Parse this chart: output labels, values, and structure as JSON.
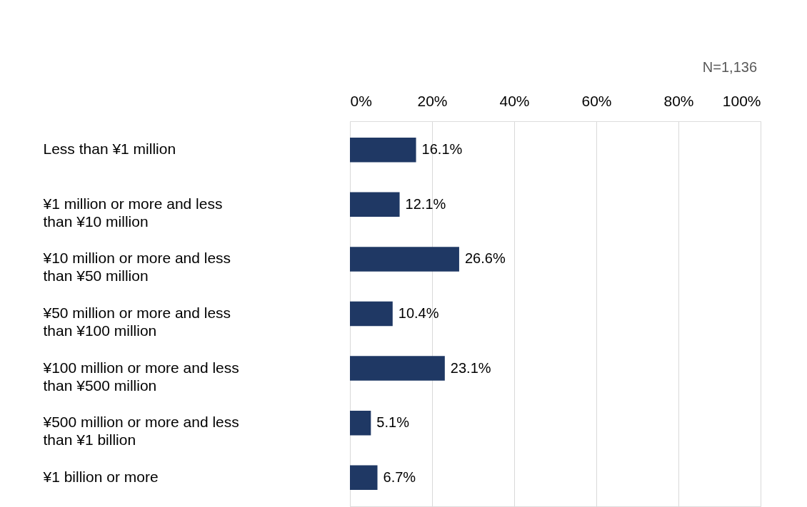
{
  "chart_data": {
    "type": "bar",
    "orientation": "horizontal",
    "categories": [
      "Less than ¥1 million",
      "¥1 million or more and less than ¥10 million",
      "¥10 million or more and less than ¥50 million",
      "¥50 million or more and less than ¥100 million",
      "¥100 million or more and less than ¥500 million",
      "¥500 million or more and less than ¥1 billion",
      "¥1 billion or more"
    ],
    "values": [
      16.1,
      12.1,
      26.6,
      10.4,
      23.1,
      5.1,
      6.7
    ],
    "value_labels": [
      "16.1%",
      "12.1%",
      "26.6%",
      "10.4%",
      "23.1%",
      "5.1%",
      "6.7%"
    ],
    "color": "#1f3864",
    "xlim": [
      0,
      100
    ],
    "xticks": [
      {
        "value": 0,
        "label": "0%"
      },
      {
        "value": 20,
        "label": "20%"
      },
      {
        "value": 40,
        "label": "40%"
      },
      {
        "value": 60,
        "label": "60%"
      },
      {
        "value": 80,
        "label": "80%"
      },
      {
        "value": 100,
        "label": "100%"
      }
    ],
    "grid": "x",
    "annotations": [
      "N=1,136"
    ]
  }
}
